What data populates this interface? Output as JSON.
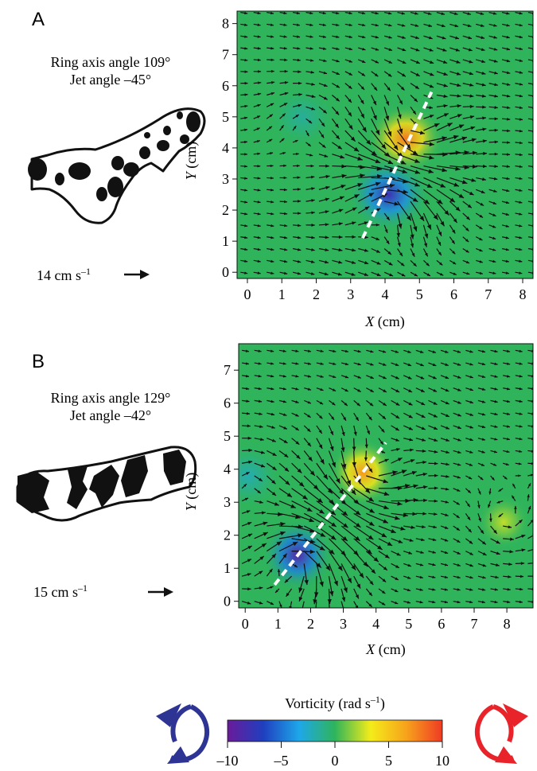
{
  "colors": {
    "field_bg": "#2fb45c",
    "fig_ink": "#111111",
    "ring_cw": "#2d3494",
    "ring_ccw": "#e8232a",
    "jet_line": "#ffffff",
    "colormap": [
      "#6a1b9a",
      "#1f3fbf",
      "#1ea7e9",
      "#2fb45c",
      "#f4ec1a",
      "#f7a21c",
      "#ef3b24"
    ]
  },
  "icons": {
    "ring_left": "clockwise-ring-arrow-icon",
    "ring_right": "counterclockwise-ring-arrow-icon",
    "scale_arrow": "right-arrow-icon"
  },
  "chart_data": [
    {
      "panel": "A",
      "type": "vector-field-heatmap",
      "annotation_line1": "Ring axis angle 109°",
      "annotation_line2": "Jet angle –45°",
      "scale_label": "14 cm s",
      "scale_exp": "–1",
      "xlabel_var": "X",
      "xlabel_unit": " (cm)",
      "ylabel_var": "Y",
      "ylabel_unit": " (cm)",
      "xlim": [
        -0.3,
        8.3
      ],
      "ylim": [
        -0.2,
        8.4
      ],
      "xticks": [
        "0",
        "1",
        "2",
        "3",
        "4",
        "5",
        "6",
        "7",
        "8"
      ],
      "yticks": [
        "0",
        "1",
        "2",
        "3",
        "4",
        "5",
        "6",
        "7",
        "8"
      ],
      "grid": false,
      "jet_line": [
        [
          3.35,
          1.1
        ],
        [
          5.35,
          5.8
        ]
      ],
      "vortices": [
        {
          "x": 4.6,
          "y": 4.3,
          "vorticity": 8,
          "spread": 0.55
        },
        {
          "x": 4.1,
          "y": 2.5,
          "vorticity": -8,
          "spread": 0.6
        },
        {
          "x": 1.6,
          "y": 5.0,
          "vorticity": -1.5,
          "spread": 0.5
        }
      ]
    },
    {
      "panel": "B",
      "type": "vector-field-heatmap",
      "annotation_line1": "Ring axis angle 129°",
      "annotation_line2": "Jet angle –42°",
      "scale_label": "15 cm s",
      "scale_exp": "–1",
      "xlabel_var": "X",
      "xlabel_unit": " (cm)",
      "ylabel_var": "Y",
      "ylabel_unit": " (cm)",
      "xlim": [
        -0.2,
        8.8
      ],
      "ylim": [
        -0.2,
        7.8
      ],
      "xticks": [
        "0",
        "1",
        "2",
        "3",
        "4",
        "5",
        "6",
        "7",
        "8"
      ],
      "yticks": [
        "0",
        "1",
        "2",
        "3",
        "4",
        "5",
        "6",
        "7"
      ],
      "grid": false,
      "jet_line": [
        [
          0.9,
          0.5
        ],
        [
          4.3,
          4.8
        ]
      ],
      "vortices": [
        {
          "x": 3.6,
          "y": 3.9,
          "vorticity": 7,
          "spread": 0.5
        },
        {
          "x": 1.6,
          "y": 1.4,
          "vorticity": -9,
          "spread": 0.55
        },
        {
          "x": 0.1,
          "y": 3.8,
          "vorticity": -2,
          "spread": 0.5
        },
        {
          "x": 7.9,
          "y": 2.4,
          "vorticity": 2.5,
          "spread": 0.4
        }
      ]
    },
    {
      "type": "colorbar",
      "title": "Vorticity (rad s",
      "title_exp": "–1",
      "title_close": ")",
      "range": [
        -10,
        10
      ],
      "ticks": [
        "–10",
        "–5",
        "0",
        "5",
        "10"
      ],
      "tick_values": [
        -10,
        -5,
        0,
        5,
        10
      ]
    }
  ]
}
